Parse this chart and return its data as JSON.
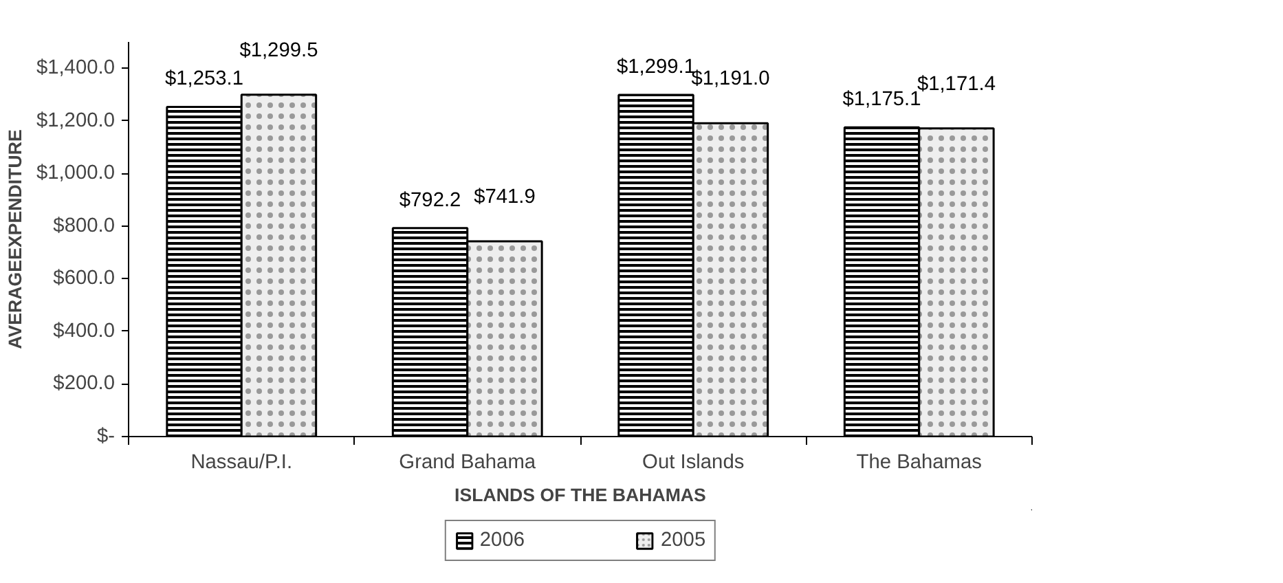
{
  "chart_data": {
    "type": "bar",
    "xlabel": "ISLANDS OF THE BAHAMAS",
    "ylabel": "AVERAGEEXPENDITURE",
    "categories": [
      "Nassau/P.I.",
      "Grand Bahama",
      "Out Islands",
      "The Bahamas"
    ],
    "series": [
      {
        "name": "2006",
        "color": "#000000",
        "values": [
          1253.1,
          792.2,
          1299.1,
          1175.1
        ],
        "value_labels": [
          "$1,253.1",
          "$792.2",
          "$1,299.1",
          "$1,175.1"
        ]
      },
      {
        "name": "2005",
        "color": "#eeeeee",
        "values": [
          1299.5,
          741.9,
          1191.0,
          1171.4
        ],
        "value_labels": [
          "$1,299.5",
          "$741.9",
          "$1,191.0",
          "$1,171.4"
        ]
      }
    ],
    "ylim": [
      0,
      1500
    ],
    "yticks": [
      {
        "value": 0,
        "label": "$-"
      },
      {
        "value": 200,
        "label": "$200.0"
      },
      {
        "value": 400,
        "label": "$400.0"
      },
      {
        "value": 600,
        "label": "$600.0"
      },
      {
        "value": 800,
        "label": "$800.0"
      },
      {
        "value": 1000,
        "label": "$1,000.0"
      },
      {
        "value": 1200,
        "label": "$1,200.0"
      },
      {
        "value": 1400,
        "label": "$1,400.0"
      }
    ],
    "grid": false,
    "legend": "bottom"
  }
}
